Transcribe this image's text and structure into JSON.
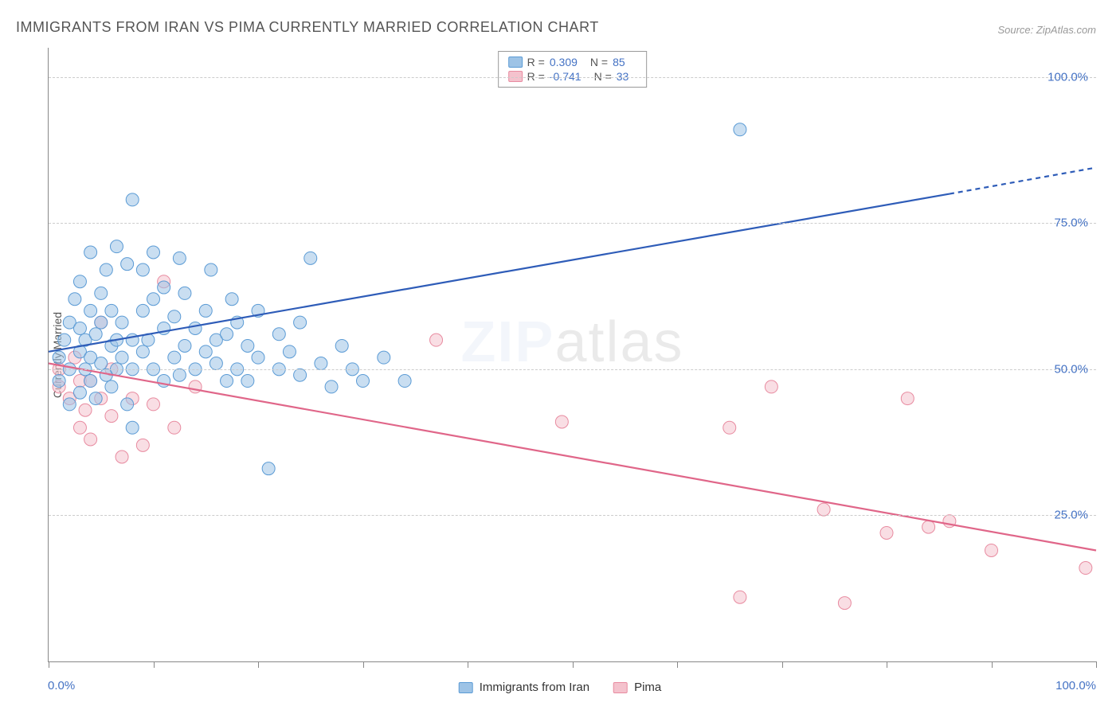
{
  "title": "IMMIGRANTS FROM IRAN VS PIMA CURRENTLY MARRIED CORRELATION CHART",
  "source": "Source: ZipAtlas.com",
  "y_axis_label": "Currently Married",
  "watermark_bold": "ZIP",
  "watermark_rest": "atlas",
  "chart": {
    "type": "scatter",
    "xlim": [
      0,
      100
    ],
    "ylim": [
      0,
      105
    ],
    "x_ticks": [
      0,
      10,
      20,
      30,
      40,
      50,
      60,
      70,
      80,
      90,
      100
    ],
    "x_tick_labels": {
      "0": "0.0%",
      "100": "100.0%"
    },
    "y_ticks": [
      25,
      50,
      75,
      100
    ],
    "y_tick_labels": [
      "25.0%",
      "50.0%",
      "75.0%",
      "100.0%"
    ],
    "grid_color": "#cccccc",
    "background_color": "#ffffff",
    "axis_color": "#888888",
    "tick_label_color": "#4472c4",
    "tick_label_fontsize": 15,
    "marker_radius": 8,
    "marker_opacity": 0.55,
    "line_width": 2.2
  },
  "series_a": {
    "name": "Immigrants from Iran",
    "fill_color": "#9dc3e6",
    "stroke_color": "#5b9bd5",
    "line_color": "#2e5cb8",
    "R": "0.309",
    "N": "85",
    "trend_start": [
      0,
      53
    ],
    "trend_solid_end": [
      86,
      80
    ],
    "trend_dash_end": [
      100,
      84.5
    ],
    "points": [
      [
        1,
        48
      ],
      [
        1,
        52
      ],
      [
        1.5,
        55
      ],
      [
        2,
        50
      ],
      [
        2,
        58
      ],
      [
        2,
        44
      ],
      [
        2.5,
        62
      ],
      [
        3,
        53
      ],
      [
        3,
        46
      ],
      [
        3,
        57
      ],
      [
        3,
        65
      ],
      [
        3.5,
        50
      ],
      [
        3.5,
        55
      ],
      [
        4,
        48
      ],
      [
        4,
        60
      ],
      [
        4,
        52
      ],
      [
        4,
        70
      ],
      [
        4.5,
        56
      ],
      [
        4.5,
        45
      ],
      [
        5,
        51
      ],
      [
        5,
        58
      ],
      [
        5,
        63
      ],
      [
        5.5,
        49
      ],
      [
        5.5,
        67
      ],
      [
        6,
        47
      ],
      [
        6,
        54
      ],
      [
        6,
        60
      ],
      [
        6.5,
        50
      ],
      [
        6.5,
        55
      ],
      [
        6.5,
        71
      ],
      [
        7,
        52
      ],
      [
        7,
        58
      ],
      [
        7.5,
        44
      ],
      [
        7.5,
        68
      ],
      [
        8,
        50
      ],
      [
        8,
        55
      ],
      [
        8,
        40
      ],
      [
        8,
        79
      ],
      [
        9,
        53
      ],
      [
        9,
        60
      ],
      [
        9,
        67
      ],
      [
        9.5,
        55
      ],
      [
        10,
        50
      ],
      [
        10,
        62
      ],
      [
        10,
        70
      ],
      [
        11,
        48
      ],
      [
        11,
        57
      ],
      [
        11,
        64
      ],
      [
        12,
        52
      ],
      [
        12,
        59
      ],
      [
        12.5,
        49
      ],
      [
        12.5,
        69
      ],
      [
        13,
        54
      ],
      [
        13,
        63
      ],
      [
        14,
        50
      ],
      [
        14,
        57
      ],
      [
        15,
        53
      ],
      [
        15,
        60
      ],
      [
        15.5,
        67
      ],
      [
        16,
        55
      ],
      [
        16,
        51
      ],
      [
        17,
        48
      ],
      [
        17,
        56
      ],
      [
        17.5,
        62
      ],
      [
        18,
        50
      ],
      [
        18,
        58
      ],
      [
        19,
        54
      ],
      [
        19,
        48
      ],
      [
        20,
        52
      ],
      [
        20,
        60
      ],
      [
        21,
        33
      ],
      [
        22,
        50
      ],
      [
        22,
        56
      ],
      [
        23,
        53
      ],
      [
        24,
        49
      ],
      [
        24,
        58
      ],
      [
        25,
        69
      ],
      [
        26,
        51
      ],
      [
        27,
        47
      ],
      [
        28,
        54
      ],
      [
        29,
        50
      ],
      [
        30,
        48
      ],
      [
        32,
        52
      ],
      [
        34,
        48
      ],
      [
        66,
        91
      ]
    ]
  },
  "series_b": {
    "name": "Pima",
    "fill_color": "#f4c2cd",
    "stroke_color": "#e88ba0",
    "line_color": "#e06689",
    "R": "-0.741",
    "N": "33",
    "trend_start": [
      0,
      51
    ],
    "trend_end": [
      100,
      19
    ],
    "points": [
      [
        1,
        47
      ],
      [
        1,
        50
      ],
      [
        2,
        45
      ],
      [
        2.5,
        52
      ],
      [
        3,
        48
      ],
      [
        3,
        40
      ],
      [
        3.5,
        43
      ],
      [
        4,
        48
      ],
      [
        4,
        38
      ],
      [
        5,
        45
      ],
      [
        5,
        58
      ],
      [
        6,
        42
      ],
      [
        6,
        50
      ],
      [
        7,
        35
      ],
      [
        8,
        45
      ],
      [
        9,
        37
      ],
      [
        10,
        44
      ],
      [
        11,
        65
      ],
      [
        12,
        40
      ],
      [
        14,
        47
      ],
      [
        37,
        55
      ],
      [
        49,
        41
      ],
      [
        65,
        40
      ],
      [
        66,
        11
      ],
      [
        69,
        47
      ],
      [
        74,
        26
      ],
      [
        76,
        10
      ],
      [
        80,
        22
      ],
      [
        82,
        45
      ],
      [
        84,
        23
      ],
      [
        86,
        24
      ],
      [
        90,
        19
      ],
      [
        99,
        16
      ]
    ]
  },
  "legend_top": {
    "r_label": "R =",
    "n_label": "N ="
  }
}
